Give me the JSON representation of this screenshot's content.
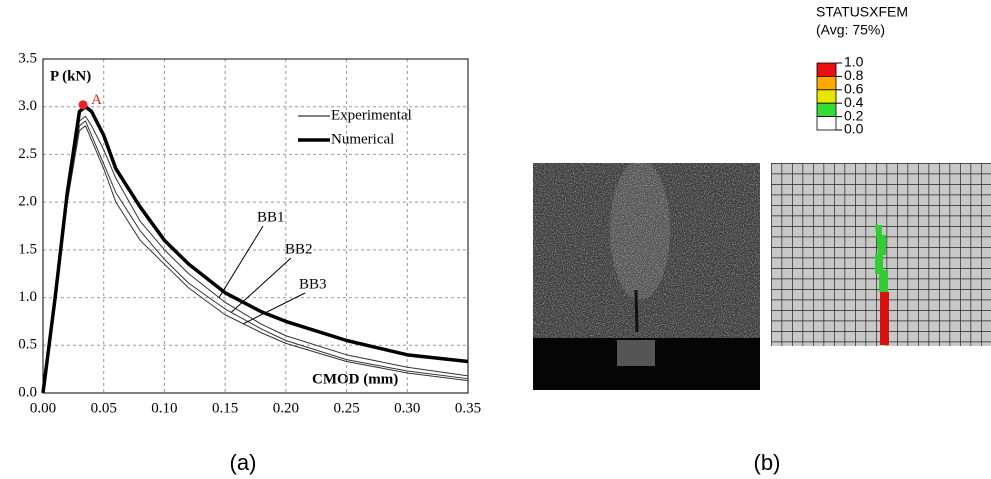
{
  "chart_data": {
    "type": "line",
    "xlabel": "CMOD (mm)",
    "ylabel": "P (kN)",
    "x": [
      0,
      0.01,
      0.02,
      0.03,
      0.035,
      0.04,
      0.05,
      0.06,
      0.08,
      0.1,
      0.12,
      0.15,
      0.18,
      0.2,
      0.25,
      0.3,
      0.35
    ],
    "series": [
      {
        "name": "BB1",
        "color": "#333333",
        "width": 1,
        "values": [
          0,
          1.0,
          2.1,
          2.85,
          2.9,
          2.8,
          2.55,
          2.25,
          1.8,
          1.5,
          1.25,
          0.95,
          0.72,
          0.6,
          0.4,
          0.27,
          0.18
        ]
      },
      {
        "name": "BB2",
        "color": "#333333",
        "width": 1,
        "values": [
          0,
          1.0,
          2.05,
          2.8,
          2.85,
          2.7,
          2.4,
          2.1,
          1.7,
          1.4,
          1.15,
          0.88,
          0.67,
          0.55,
          0.35,
          0.23,
          0.15
        ]
      },
      {
        "name": "BB3",
        "color": "#333333",
        "width": 1,
        "values": [
          0,
          1.0,
          2.0,
          2.75,
          2.8,
          2.65,
          2.35,
          2.0,
          1.6,
          1.35,
          1.1,
          0.82,
          0.63,
          0.52,
          0.33,
          0.21,
          0.13
        ]
      },
      {
        "name": "Numerical",
        "color": "#000000",
        "width": 3.5,
        "values": [
          0,
          1.0,
          2.1,
          2.95,
          3.0,
          2.95,
          2.7,
          2.35,
          1.95,
          1.6,
          1.35,
          1.05,
          0.85,
          0.75,
          0.55,
          0.4,
          0.33
        ]
      }
    ],
    "legend": [
      {
        "label": "Experimental",
        "width": 1
      },
      {
        "label": "Numerical",
        "width": 3.5
      }
    ],
    "point": {
      "label": "A",
      "x": 0.033,
      "y": 3.02,
      "color": "#ee2222"
    },
    "xlim": [
      0,
      0.35
    ],
    "xticks": [
      {
        "value": 0,
        "label": "0.00"
      },
      {
        "value": 0.05,
        "label": "0.05"
      },
      {
        "value": 0.1,
        "label": "0.10"
      },
      {
        "value": 0.15,
        "label": "0.15"
      },
      {
        "value": 0.2,
        "label": "0.20"
      },
      {
        "value": 0.25,
        "label": "0.25"
      },
      {
        "value": 0.3,
        "label": "0.30"
      },
      {
        "value": 0.35,
        "label": "0.35"
      }
    ],
    "ylim": [
      0,
      3.5
    ],
    "yticks": [
      {
        "value": 0,
        "label": "0.0"
      },
      {
        "value": 0.5,
        "label": "0.5"
      },
      {
        "value": 1,
        "label": "1.0"
      },
      {
        "value": 1.5,
        "label": "1.5"
      },
      {
        "value": 2,
        "label": "2.0"
      },
      {
        "value": 2.5,
        "label": "2.5"
      },
      {
        "value": 3,
        "label": "3.0"
      },
      {
        "value": 3.5,
        "label": "3.5"
      }
    ],
    "grid": true
  },
  "panels": [
    "(a)",
    "(b)"
  ],
  "contour": {
    "title": "STATUSXFEM",
    "subtitle": "(Avg: 75%)",
    "colors": [
      "#e81010",
      "#ffaa00",
      "#e6e600",
      "#33dd33",
      "#ffffff"
    ],
    "levels": [
      {
        "value": 1,
        "label": "1.0"
      },
      {
        "value": 0.8,
        "label": "0.8"
      },
      {
        "value": 0.6,
        "label": "0.6"
      },
      {
        "value": 0.4,
        "label": "0.4"
      },
      {
        "value": 0.2,
        "label": "0.2"
      },
      {
        "value": 0,
        "label": "0.0"
      }
    ]
  }
}
